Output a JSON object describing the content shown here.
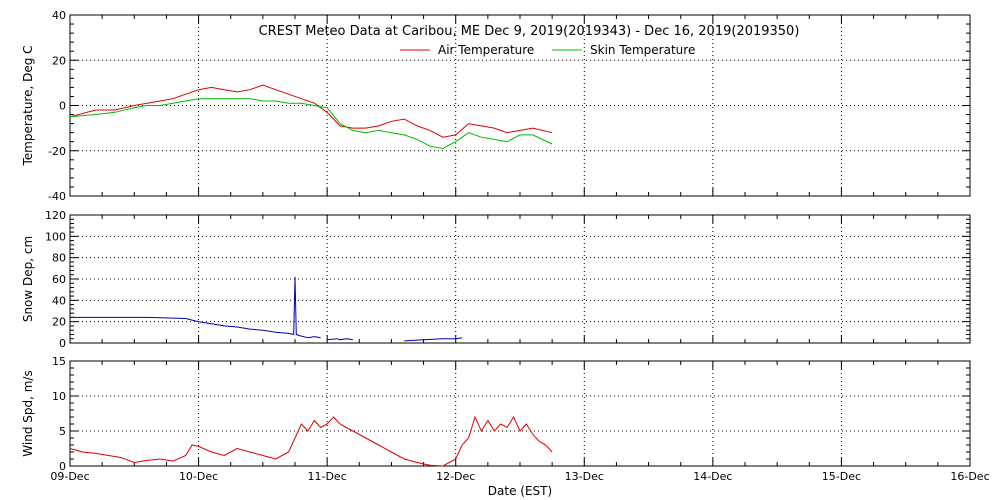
{
  "title": "CREST Meteo Data at Caribou, ME   Dec  9, 2019(2019343) - Dec 16, 2019(2019350)",
  "x_axis": {
    "label": "Date (EST)",
    "ticks": [
      "09-Dec",
      "10-Dec",
      "11-Dec",
      "12-Dec",
      "13-Dec",
      "14-Dec",
      "15-Dec",
      "16-Dec"
    ],
    "range": [
      0,
      7
    ]
  },
  "colors": {
    "air": "#dd0000",
    "skin": "#00bb00",
    "snow": "#0000aa",
    "wind": "#dd0000",
    "frame": "#000000",
    "grid": "#000000"
  },
  "chart_data": [
    {
      "type": "line",
      "ylabel": "Temperature, Deg C",
      "ylim": [
        -40,
        40
      ],
      "yticks": [
        -40,
        -20,
        0,
        20,
        40
      ],
      "grid": true,
      "legend": "top-right",
      "series": [
        {
          "name": "Air Temperature",
          "color": "#dd0000",
          "x": [
            0,
            0.2,
            0.35,
            0.5,
            0.6,
            0.7,
            0.8,
            0.9,
            1.0,
            1.1,
            1.2,
            1.3,
            1.4,
            1.5,
            1.6,
            1.7,
            1.8,
            1.9,
            2.0,
            2.1,
            2.2,
            2.3,
            2.4,
            2.5,
            2.6,
            2.7,
            2.8,
            2.9,
            3.0,
            3.1,
            3.2,
            3.3,
            3.4,
            3.5,
            3.6,
            3.75
          ],
          "y": [
            -5,
            -2,
            -2,
            0,
            1,
            2,
            3,
            5,
            7,
            8,
            7,
            6,
            7,
            9,
            7,
            5,
            3,
            1,
            -3,
            -9,
            -10,
            -10,
            -9,
            -7,
            -6,
            -9,
            -11,
            -14,
            -13,
            -8,
            -9,
            -10,
            -12,
            -11,
            -10,
            -12
          ]
        },
        {
          "name": "Skin Temperature",
          "color": "#00bb00",
          "x": [
            0,
            0.2,
            0.35,
            0.5,
            0.6,
            0.7,
            0.8,
            0.9,
            1.0,
            1.1,
            1.2,
            1.3,
            1.4,
            1.5,
            1.6,
            1.7,
            1.8,
            1.9,
            2.0,
            2.1,
            2.2,
            2.3,
            2.4,
            2.5,
            2.6,
            2.7,
            2.8,
            2.9,
            3.0,
            3.1,
            3.2,
            3.3,
            3.4,
            3.5,
            3.6,
            3.75
          ],
          "y": [
            -5,
            -4,
            -3,
            -1,
            0,
            0,
            1,
            2,
            3,
            3,
            3,
            3,
            3,
            2,
            2,
            1,
            1,
            0,
            -1,
            -8,
            -11,
            -12,
            -11,
            -12,
            -13,
            -15,
            -18,
            -19,
            -16,
            -12,
            -14,
            -15,
            -16,
            -13,
            -13,
            -17
          ]
        }
      ]
    },
    {
      "type": "line",
      "ylabel": "Snow Dep, cm",
      "ylim": [
        0,
        120
      ],
      "yticks": [
        0,
        20,
        40,
        60,
        80,
        100,
        120
      ],
      "grid": true,
      "series": [
        {
          "color": "#0000aa",
          "x": [
            0,
            0.3,
            0.6,
            0.9,
            1.0,
            1.1,
            1.2,
            1.3,
            1.4,
            1.5,
            1.6,
            1.7,
            1.74,
            1.75,
            1.76,
            1.78,
            1.85
          ],
          "y": [
            24,
            24,
            24,
            23,
            20,
            18,
            16,
            15,
            13,
            12,
            10,
            9,
            8,
            62,
            8,
            7,
            5
          ]
        },
        {
          "color": "#0000aa",
          "x": [
            1.85,
            1.9,
            1.95
          ],
          "y": [
            5,
            6,
            5
          ]
        },
        {
          "color": "#0000aa",
          "x": [
            2.0,
            2.08,
            2.1,
            2.15,
            2.2
          ],
          "y": [
            3,
            4,
            3,
            4,
            3
          ]
        },
        {
          "color": "#0000aa",
          "x": [
            2.6,
            2.75,
            2.9,
            3.0,
            3.05
          ],
          "y": [
            2,
            3,
            4,
            4,
            5
          ]
        }
      ]
    },
    {
      "type": "line",
      "ylabel": "Wind Spd, m/s",
      "ylim": [
        0,
        15
      ],
      "yticks": [
        0,
        5,
        10,
        15
      ],
      "grid": true,
      "series": [
        {
          "color": "#dd0000",
          "x": [
            0,
            0.1,
            0.2,
            0.3,
            0.4,
            0.5,
            0.6,
            0.7,
            0.8,
            0.9,
            0.95,
            1.0,
            1.1,
            1.2,
            1.3,
            1.4,
            1.5,
            1.6,
            1.7,
            1.75,
            1.8,
            1.85,
            1.9,
            1.95,
            2.0,
            2.05,
            2.1,
            2.15,
            2.2,
            2.3,
            2.4,
            2.5,
            2.6,
            2.7,
            2.8,
            2.9,
            3.0,
            3.05,
            3.1,
            3.15,
            3.2,
            3.25,
            3.3,
            3.35,
            3.4,
            3.45,
            3.5,
            3.55,
            3.6,
            3.65,
            3.7,
            3.75
          ],
          "y": [
            2.5,
            2,
            1.8,
            1.5,
            1.2,
            0.5,
            0.8,
            1,
            0.7,
            1.5,
            3,
            2.8,
            2,
            1.5,
            2.5,
            2,
            1.5,
            1,
            2,
            4,
            6,
            5,
            6.5,
            5.5,
            6,
            7,
            6,
            5.5,
            5,
            4,
            3,
            2,
            1,
            0.5,
            0.1,
            0,
            1,
            3,
            4,
            7,
            5,
            6.5,
            5,
            6,
            5.5,
            7,
            5,
            6,
            4.5,
            3.5,
            3,
            2
          ]
        }
      ]
    }
  ]
}
